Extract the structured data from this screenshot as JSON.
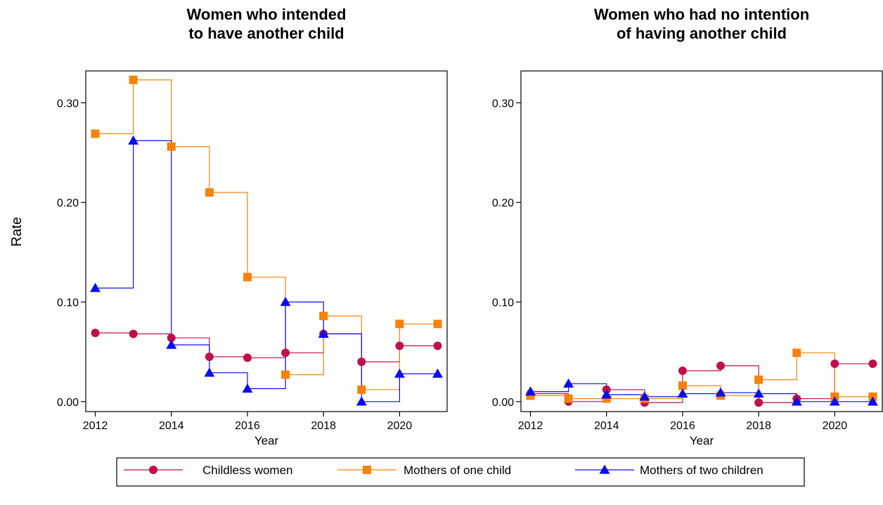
{
  "chart_data": {
    "type": "line",
    "ylabel": "Rate",
    "step": "post",
    "legend_position": "bottom",
    "ylim": [
      -0.01,
      0.332
    ],
    "yticks": [
      "0.00",
      "0.10",
      "0.20",
      "0.30"
    ],
    "ytick_values": [
      0,
      0.1,
      0.2,
      0.3
    ],
    "xlim": [
      2011.75,
      2021.25
    ],
    "xticks": [
      "2012",
      "2014",
      "2016",
      "2018",
      "2020"
    ],
    "xtick_values": [
      2012,
      2014,
      2016,
      2018,
      2020
    ],
    "x": [
      2012,
      2013,
      2014,
      2015,
      2016,
      2017,
      2018,
      2019,
      2020,
      2021
    ],
    "series_styles": [
      {
        "name": "Childless women",
        "color": "#c0104a",
        "marker": "circle"
      },
      {
        "name": "Mothers of one child",
        "color": "#f7820a",
        "marker": "square"
      },
      {
        "name": "Mothers of two children",
        "color": "#0c0cf0",
        "marker": "triangle"
      }
    ],
    "panels": [
      {
        "title_lines": [
          "Women who intended",
          "to have another child"
        ],
        "xlabel": "Year",
        "series": [
          {
            "name": "Childless women",
            "values": [
              0.069,
              0.068,
              0.064,
              0.045,
              0.044,
              0.049,
              0.068,
              0.04,
              0.056,
              0.056
            ]
          },
          {
            "name": "Mothers of one child",
            "values": [
              0.269,
              0.323,
              0.256,
              0.21,
              0.125,
              0.027,
              0.086,
              0.012,
              0.078,
              0.078
            ]
          },
          {
            "name": "Mothers of two children",
            "values": [
              0.114,
              0.262,
              0.057,
              0.029,
              0.013,
              0.1,
              0.068,
              0.0,
              0.028,
              0.028
            ]
          }
        ]
      },
      {
        "title_lines": [
          "Women who had no intention",
          "of having another child"
        ],
        "xlabel": "Year",
        "series": [
          {
            "name": "Childless women",
            "values": [
              0.008,
              0.0,
              0.012,
              -0.001,
              0.031,
              0.036,
              -0.001,
              0.003,
              0.038,
              0.038
            ]
          },
          {
            "name": "Mothers of one child",
            "values": [
              0.006,
              0.003,
              0.003,
              0.003,
              0.016,
              0.006,
              0.022,
              0.049,
              0.005,
              0.005
            ]
          },
          {
            "name": "Mothers of two children",
            "values": [
              0.01,
              0.018,
              0.007,
              0.005,
              0.008,
              0.009,
              0.008,
              0.0,
              0.0,
              0.0
            ]
          }
        ]
      }
    ]
  }
}
